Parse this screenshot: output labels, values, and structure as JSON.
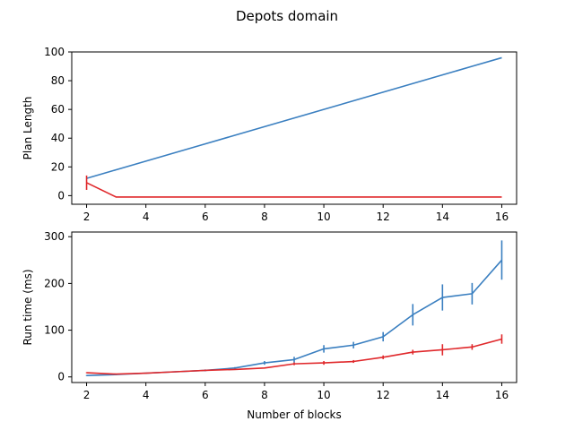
{
  "figure_title": "Depots domain",
  "colors": {
    "blue": "#3a7fc0",
    "red": "#e0282b",
    "axis": "#000000"
  },
  "chart_data": [
    {
      "type": "line",
      "title": "",
      "xlabel": "",
      "ylabel": "Plan Length",
      "xlim": [
        1.5,
        16.5
      ],
      "ylim": [
        -6,
        100
      ],
      "xticks": [
        2,
        4,
        6,
        8,
        10,
        12,
        14,
        16
      ],
      "yticks": [
        0,
        20,
        40,
        60,
        80,
        100
      ],
      "grid": false,
      "legend": "none",
      "series": [
        {
          "color": "#3a7fc0",
          "x": [
            2,
            3,
            4,
            5,
            6,
            7,
            8,
            9,
            10,
            11,
            12,
            13,
            14,
            15,
            16
          ],
          "y": [
            12,
            18,
            24,
            30,
            36,
            42,
            48,
            54,
            60,
            66,
            72,
            78,
            84,
            90,
            96
          ],
          "err": [
            0,
            0,
            0,
            0,
            0,
            0,
            0,
            0,
            0,
            0,
            0,
            0,
            0,
            0,
            0
          ]
        },
        {
          "color": "#e0282b",
          "x": [
            2,
            3,
            4,
            5,
            6,
            7,
            8,
            9,
            10,
            11,
            12,
            13,
            14,
            15,
            16
          ],
          "y": [
            9,
            -1,
            -1,
            -1,
            -1,
            -1,
            -1,
            -1,
            -1,
            -1,
            -1,
            -1,
            -1,
            -1,
            -1
          ],
          "err": [
            5,
            0,
            0,
            0,
            0,
            0,
            0,
            0,
            0,
            0,
            0,
            0,
            0,
            0,
            0
          ]
        }
      ]
    },
    {
      "type": "line",
      "title": "",
      "xlabel": "Number of blocks",
      "ylabel": "Run time (ms)",
      "xlim": [
        1.5,
        16.5
      ],
      "ylim": [
        -12,
        310
      ],
      "xticks": [
        2,
        4,
        6,
        8,
        10,
        12,
        14,
        16
      ],
      "yticks": [
        0,
        100,
        200,
        300
      ],
      "grid": false,
      "legend": "none",
      "series": [
        {
          "color": "#3a7fc0",
          "x": [
            2,
            3,
            4,
            5,
            6,
            7,
            8,
            9,
            10,
            11,
            12,
            13,
            14,
            15,
            16
          ],
          "y": [
            3,
            5,
            8,
            11,
            14,
            19,
            30,
            37,
            60,
            68,
            86,
            133,
            170,
            178,
            250
          ],
          "err": [
            1,
            1,
            1,
            1,
            2,
            2,
            4,
            6,
            8,
            7,
            10,
            23,
            28,
            23,
            42
          ]
        },
        {
          "color": "#e0282b",
          "x": [
            2,
            3,
            4,
            5,
            6,
            7,
            8,
            9,
            10,
            11,
            12,
            13,
            14,
            15,
            16
          ],
          "y": [
            9,
            6,
            8,
            11,
            14,
            16,
            19,
            28,
            30,
            33,
            42,
            53,
            58,
            64,
            81
          ],
          "err": [
            1,
            1,
            1,
            1,
            1,
            1,
            1,
            3,
            4,
            3,
            4,
            5,
            12,
            6,
            10
          ]
        }
      ]
    }
  ]
}
